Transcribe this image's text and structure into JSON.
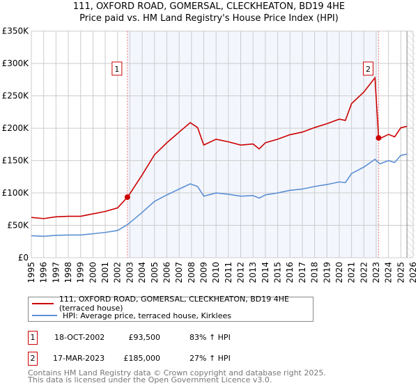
{
  "chart_data": {
    "type": "line",
    "title": "111, OXFORD ROAD, GOMERSAL, CLECKHEATON, BD19 4HE",
    "subtitle": "Price paid vs. HM Land Registry's House Price Index (HPI)",
    "xlim": [
      1995,
      2026
    ],
    "ylim": [
      0,
      350000
    ],
    "x_ticks": [
      "1995",
      "1996",
      "1997",
      "1998",
      "1999",
      "2000",
      "2001",
      "2002",
      "2003",
      "2004",
      "2005",
      "2006",
      "2007",
      "2008",
      "2009",
      "2010",
      "2011",
      "2012",
      "2013",
      "2014",
      "2015",
      "2016",
      "2017",
      "2018",
      "2019",
      "2020",
      "2021",
      "2022",
      "2023",
      "2024",
      "2025",
      "2026"
    ],
    "y_ticks": [
      {
        "v": 0,
        "label": "£0"
      },
      {
        "v": 50000,
        "label": "£50K"
      },
      {
        "v": 100000,
        "label": "£100K"
      },
      {
        "v": 150000,
        "label": "£150K"
      },
      {
        "v": 200000,
        "label": "£200K"
      },
      {
        "v": 250000,
        "label": "£250K"
      },
      {
        "v": 300000,
        "label": "£300K"
      },
      {
        "v": 350000,
        "label": "£350K"
      }
    ],
    "grid": true,
    "shaded_range": [
      2002.8,
      2023.2
    ],
    "hatched_from": 2025.5,
    "series": [
      {
        "name": "111, OXFORD ROAD, GOMERSAL, CLECKHEATON, BD19 4HE (terraced house)",
        "color": "#cc0000",
        "x": [
          1995,
          1996,
          1997,
          1998,
          1999,
          2000,
          2001,
          2002,
          2002.8,
          2003,
          2004,
          2005,
          2006,
          2007,
          2007.9,
          2008.5,
          2009,
          2010,
          2011,
          2012,
          2013,
          2013.5,
          2014,
          2015,
          2016,
          2017,
          2018,
          2019,
          2020,
          2020.5,
          2021,
          2022,
          2022.9,
          2023.2,
          2023.3,
          2024,
          2024.5,
          2025,
          2025.5
        ],
        "y": [
          62200,
          60400,
          63100,
          64000,
          64000,
          67700,
          71400,
          76900,
          93500,
          98800,
          128000,
          159000,
          177500,
          194000,
          208600,
          201000,
          174000,
          183000,
          179000,
          174000,
          175700,
          168000,
          177500,
          183000,
          190000,
          194000,
          201000,
          207000,
          214000,
          212000,
          238000,
          256000,
          278000,
          185000,
          184000,
          190500,
          186700,
          200700,
          203000
        ]
      },
      {
        "name": "HPI: Average price, terraced house, Kirklees",
        "color": "#5b8fd4",
        "x": [
          1995,
          1996,
          1997,
          1998,
          1999,
          2000,
          2001,
          2002,
          2002.8,
          2003,
          2004,
          2005,
          2006,
          2007,
          2007.9,
          2008.5,
          2009,
          2010,
          2011,
          2012,
          2013,
          2013.5,
          2014,
          2015,
          2016,
          2017,
          2018,
          2019,
          2020,
          2020.5,
          2021,
          2022,
          2022.9,
          2023.3,
          2024,
          2024.5,
          2025,
          2025.5
        ],
        "y": [
          34000,
          33000,
          34500,
          35000,
          35000,
          37000,
          39000,
          42000,
          51000,
          54000,
          70000,
          87000,
          97000,
          106000,
          114000,
          110000,
          95000,
          100000,
          98000,
          95000,
          96000,
          92000,
          97000,
          100000,
          104000,
          106000,
          110000,
          113000,
          117000,
          116000,
          130000,
          140000,
          152000,
          145000,
          150000,
          147000,
          158000,
          160000
        ]
      }
    ],
    "annotations": [
      {
        "label": "1",
        "x": 2002.8,
        "y": 93500
      },
      {
        "label": "2",
        "x": 2023.2,
        "y": 185000
      }
    ]
  },
  "legend": {
    "red": "111, OXFORD ROAD, GOMERSAL, CLECKHEATON, BD19 4HE (terraced house)",
    "blue": "HPI: Average price, terraced house, Kirklees"
  },
  "sales": [
    {
      "num": "1",
      "date": "18-OCT-2002",
      "price": "£93,500",
      "hpi": "83% ↑ HPI"
    },
    {
      "num": "2",
      "date": "17-MAR-2023",
      "price": "£185,000",
      "hpi": "27% ↑ HPI"
    }
  ],
  "footer": {
    "line1": "Contains HM Land Registry data © Crown copyright and database right 2025.",
    "line2": "This data is licensed under the Open Government Licence v3.0."
  }
}
